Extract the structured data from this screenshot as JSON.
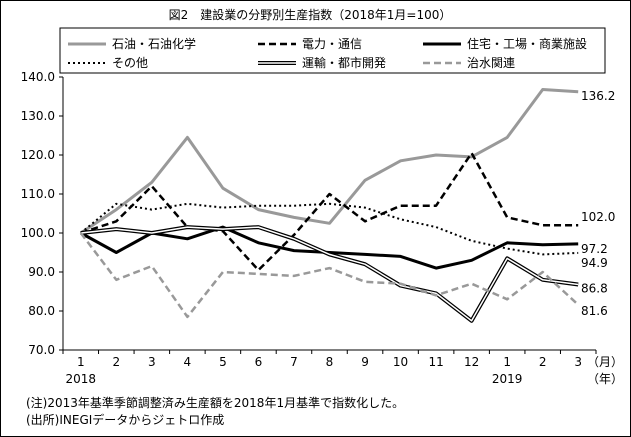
{
  "chart_data": {
    "type": "line",
    "title": "図2　建設業の分野別生産指数（2018年1月=100）",
    "categories": [
      "1",
      "2",
      "3",
      "4",
      "5",
      "6",
      "7",
      "8",
      "9",
      "10",
      "11",
      "12",
      "1",
      "2",
      "3"
    ],
    "year_labels": [
      {
        "index": 0,
        "label": "2018"
      },
      {
        "index": 12,
        "label": "2019"
      }
    ],
    "x_unit_month": "（月）",
    "x_unit_year": "（年）",
    "ylim": [
      70,
      140
    ],
    "yticks": [
      "70.0",
      "80.0",
      "90.0",
      "100.0",
      "110.0",
      "120.0",
      "130.0",
      "140.0"
    ],
    "grid": false,
    "legend_position": "top",
    "series": [
      {
        "name": "石油・石油化学",
        "color": "#999999",
        "style": "solid-thick",
        "values": [
          100,
          106,
          113,
          124.5,
          111.5,
          106,
          104,
          102.5,
          113.5,
          118.5,
          120,
          119.5,
          124.5,
          136.8,
          136.2
        ],
        "end_label": "136.2"
      },
      {
        "name": "電力・通信",
        "color": "#000000",
        "style": "dashed",
        "values": [
          100,
          103,
          112,
          101.5,
          100.5,
          90.5,
          99.5,
          110,
          103,
          107,
          107,
          120.5,
          104,
          102,
          102.0
        ],
        "end_label": "102.0"
      },
      {
        "name": "住宅・工場・商業施設",
        "color": "#000000",
        "style": "solid-thick",
        "values": [
          100,
          95,
          100,
          98.5,
          101.5,
          97.5,
          95.5,
          95,
          94.5,
          94,
          91,
          93,
          97.5,
          97,
          97.2
        ],
        "end_label": "97.2"
      },
      {
        "name": "その他",
        "color": "#000000",
        "style": "dotted",
        "values": [
          100,
          107.5,
          106,
          107.5,
          106.5,
          107,
          107,
          107.5,
          106.5,
          103.5,
          101.5,
          98,
          96,
          94.5,
          94.9
        ],
        "end_label": "94.9"
      },
      {
        "name": "運輸・都市開発",
        "color": "#000000",
        "style": "double",
        "values": [
          100,
          101,
          100,
          101.5,
          101,
          101.5,
          98.5,
          94.5,
          92,
          86.5,
          84.5,
          77.5,
          93.5,
          88,
          86.8
        ],
        "end_label": "86.8"
      },
      {
        "name": "治水関連",
        "color": "#999999",
        "style": "dashed",
        "values": [
          100,
          88,
          91.5,
          78.5,
          90,
          89.5,
          89,
          91,
          87.5,
          87,
          84,
          87,
          83,
          90,
          81.6
        ],
        "end_label": "81.6"
      }
    ]
  },
  "notes": [
    "(注)2013年基準季節調整済み生産額を2018年1月基準で指数化した。",
    "(出所)INEGIデータからジェトロ作成"
  ]
}
